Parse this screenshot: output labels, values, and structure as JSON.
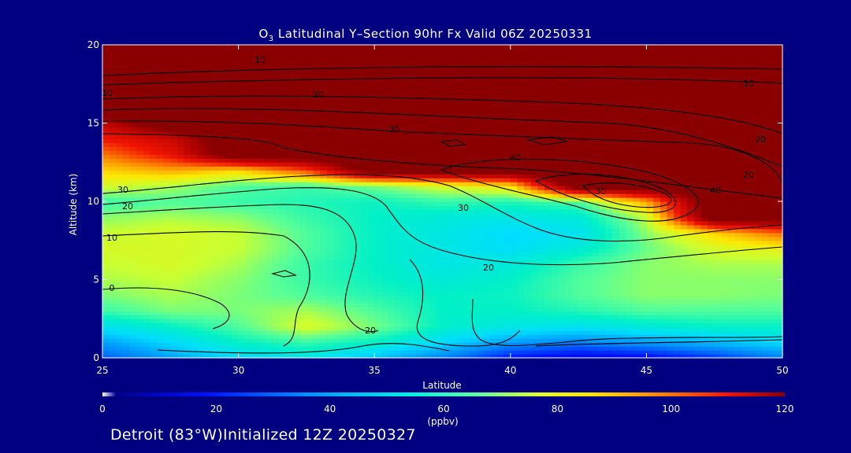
{
  "chart_data": {
    "type": "heatmap",
    "title_main": "O",
    "title_sub": "3",
    "title_rest": " Latitudinal Y–Section 90hr  Fx Valid 06Z 20250331",
    "xlabel": "Latitude",
    "ylabel": "Altitude (km)",
    "xlim": [
      25,
      50
    ],
    "ylim": [
      0,
      20
    ],
    "xticks": [
      25,
      30,
      35,
      40,
      45,
      50
    ],
    "yticks": [
      0,
      5,
      10,
      15,
      20
    ],
    "colorbar": {
      "min": 0,
      "max": 120,
      "ticks": [
        0,
        20,
        40,
        60,
        80,
        100,
        120
      ],
      "unit": "(ppbv)"
    },
    "x": [
      25,
      27.5,
      30,
      32.5,
      35,
      37.5,
      40,
      42.5,
      45,
      47.5,
      50
    ],
    "y": [
      0,
      1,
      2,
      3,
      4,
      5,
      6,
      7,
      8,
      9,
      10,
      11,
      12,
      13,
      14,
      15,
      16,
      17,
      18,
      19,
      20
    ],
    "z": [
      [
        25,
        35,
        45,
        50,
        40,
        30,
        15,
        10,
        12,
        20,
        30
      ],
      [
        35,
        45,
        55,
        60,
        55,
        45,
        35,
        30,
        35,
        40,
        45
      ],
      [
        48,
        55,
        62,
        72,
        65,
        55,
        50,
        48,
        52,
        55,
        55
      ],
      [
        60,
        65,
        65,
        68,
        62,
        55,
        55,
        58,
        62,
        62,
        62
      ],
      [
        65,
        68,
        65,
        62,
        58,
        55,
        56,
        62,
        66,
        66,
        65
      ],
      [
        68,
        70,
        66,
        60,
        56,
        52,
        55,
        62,
        66,
        66,
        66
      ],
      [
        70,
        72,
        68,
        60,
        55,
        50,
        52,
        60,
        66,
        68,
        68
      ],
      [
        72,
        72,
        70,
        62,
        55,
        50,
        46,
        52,
        64,
        72,
        75
      ],
      [
        70,
        72,
        70,
        62,
        55,
        50,
        45,
        48,
        66,
        80,
        92
      ],
      [
        66,
        68,
        66,
        60,
        55,
        52,
        50,
        52,
        70,
        130,
        130
      ],
      [
        60,
        62,
        60,
        58,
        56,
        60,
        58,
        62,
        85,
        130,
        130
      ],
      [
        72,
        68,
        62,
        60,
        65,
        72,
        78,
        130,
        130,
        130,
        130
      ],
      [
        80,
        85,
        80,
        95,
        130,
        130,
        130,
        130,
        130,
        130,
        130
      ],
      [
        90,
        102,
        130,
        130,
        130,
        130,
        130,
        130,
        130,
        130,
        130
      ],
      [
        100,
        108,
        130,
        130,
        130,
        130,
        130,
        130,
        130,
        130,
        130
      ],
      [
        110,
        130,
        130,
        130,
        130,
        130,
        130,
        130,
        130,
        130,
        130
      ],
      [
        130,
        130,
        130,
        130,
        130,
        130,
        130,
        130,
        130,
        130,
        130
      ],
      [
        130,
        130,
        130,
        130,
        130,
        130,
        130,
        130,
        130,
        130,
        130
      ],
      [
        130,
        130,
        130,
        130,
        130,
        130,
        130,
        130,
        130,
        130,
        130
      ],
      [
        130,
        130,
        130,
        130,
        130,
        130,
        130,
        130,
        130,
        130,
        130
      ],
      [
        130,
        130,
        130,
        130,
        130,
        130,
        130,
        130,
        130,
        130,
        130
      ]
    ],
    "contour_labels": [
      "10",
      "10",
      "20",
      "20",
      "30",
      "40",
      "40",
      "30",
      "20",
      "20",
      "30",
      "20",
      "10",
      "0",
      "30",
      "20",
      "10"
    ]
  },
  "footer": "Detroit (83°W)Initialized 12Z 20250327"
}
